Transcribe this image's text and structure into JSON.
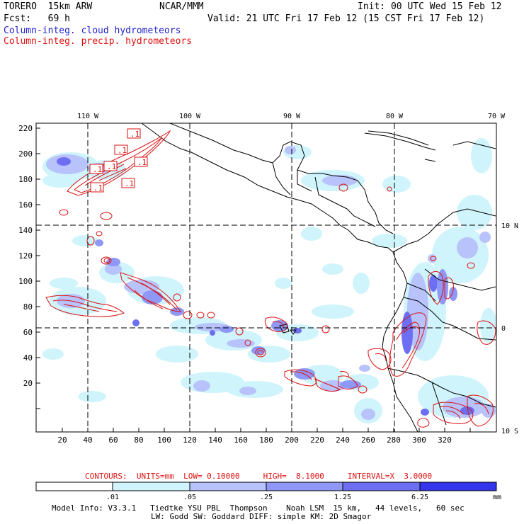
{
  "header": {
    "model": "TORERO  15km ARW",
    "org": "NCAR/MMM",
    "init": "Init: 00 UTC Wed 15 Feb 12",
    "fcst": "Fcst:   69 h",
    "valid": "Valid: 21 UTC Fri 17 Feb 12 (15 CST Fri 17 Feb 12)",
    "field_cloud": "Column-integ. cloud hydrometeors",
    "field_precip": "Column-integ. precip. hydrometeors"
  },
  "map": {
    "lon_labels": [
      "110 W",
      "100 W",
      "90 W",
      "80 W",
      "70 W"
    ],
    "lat_labels": [
      "10 N",
      "0",
      "10 S"
    ],
    "y_ticks": [
      "220",
      "200",
      "180",
      "160",
      "140",
      "120",
      "100",
      "80",
      "60",
      "40",
      "20"
    ],
    "x_ticks": [
      "20",
      "40",
      "60",
      "80",
      "100",
      "120",
      "140",
      "160",
      "180",
      "200",
      "220",
      "240",
      "260",
      "280",
      "300",
      "320"
    ],
    "contour_labels": [
      ".1",
      ".1",
      ".1",
      ".1",
      ".1",
      ".1",
      ".1"
    ]
  },
  "legend": {
    "contours": "CONTOURS:  UNITS=mm  LOW= 0.10000     HIGH=  8.1000     INTERVAL=X  3.0000",
    "scale_labels": [
      ".01",
      ".05",
      ".25",
      "1.25",
      "6.25"
    ],
    "unit": "mm",
    "colors": [
      "#ffffff",
      "#d0f4fb",
      "#b8c2fb",
      "#8f98f6",
      "#6d6ff2",
      "#4848ee",
      "#2424e6"
    ]
  },
  "footer": {
    "line1": "Model Info: V3.3.1   Tiedtke YSU PBL  Thompson    Noah LSM  15 km,   44 levels,   60 sec",
    "line2": "LW: Godd SW: Goddard DIFF: simple KM: 2D Smagor"
  }
}
